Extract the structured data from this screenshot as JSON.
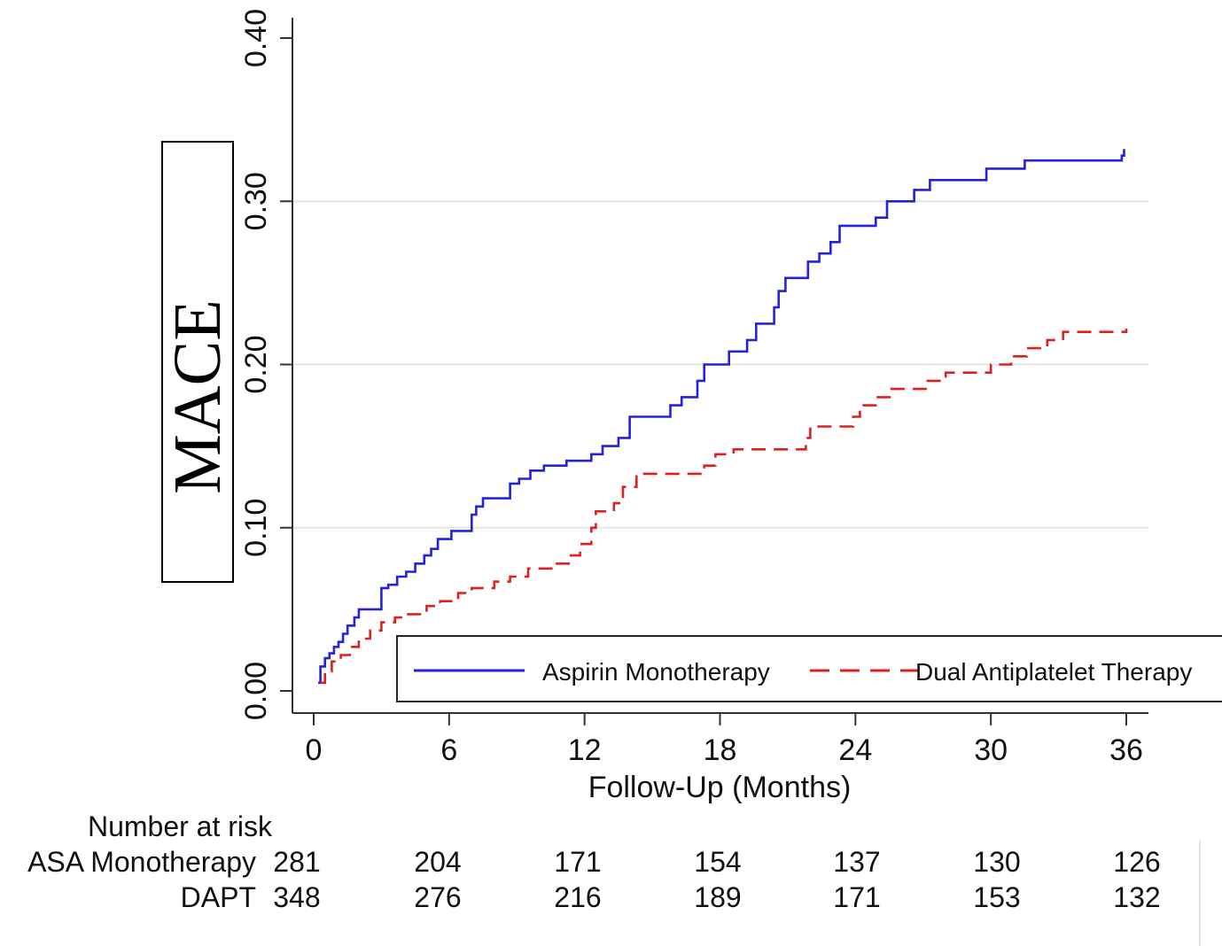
{
  "chart_data": {
    "type": "line",
    "title": "",
    "xlabel": "Follow-Up (Months)",
    "ylabel": "MACE",
    "xlim": [
      0,
      36
    ],
    "ylim": [
      0,
      0.4
    ],
    "x_ticks": [
      0,
      6,
      12,
      18,
      24,
      30,
      36
    ],
    "x_tick_labels": [
      "0",
      "6",
      "12",
      "18",
      "24",
      "30",
      "36"
    ],
    "y_ticks": [
      0,
      0.1,
      0.2,
      0.3,
      0.4
    ],
    "y_tick_labels": [
      "0.00",
      "0.10",
      "0.20",
      "0.30",
      "0.40"
    ],
    "grid": true,
    "legend_position": "bottom-right",
    "series": [
      {
        "name": "Aspirin Monotherapy",
        "color": "#2222dd",
        "style": "solid",
        "step": true,
        "x": [
          0.2,
          0.3,
          0.5,
          0.7,
          0.9,
          1.1,
          1.3,
          1.5,
          1.8,
          2.0,
          3.0,
          3.3,
          3.7,
          4.1,
          4.5,
          4.9,
          5.2,
          5.5,
          6.1,
          6.5,
          7.0,
          7.2,
          7.5,
          8.7,
          9.1,
          9.6,
          10.2,
          11.2,
          12.3,
          12.8,
          13.5,
          14.0,
          15.8,
          16.3,
          17.0,
          17.3,
          17.7,
          18.4,
          19.2,
          19.6,
          20.4,
          20.6,
          20.9,
          21.9,
          22.4,
          22.9,
          23.3,
          24.9,
          25.4,
          26.6,
          27.3,
          29.8,
          31.5,
          35.8,
          35.9
        ],
        "y": [
          0.005,
          0.015,
          0.02,
          0.023,
          0.027,
          0.03,
          0.035,
          0.04,
          0.045,
          0.05,
          0.063,
          0.065,
          0.07,
          0.073,
          0.078,
          0.083,
          0.087,
          0.093,
          0.098,
          0.098,
          0.108,
          0.113,
          0.118,
          0.127,
          0.13,
          0.135,
          0.138,
          0.141,
          0.145,
          0.15,
          0.155,
          0.168,
          0.175,
          0.18,
          0.19,
          0.2,
          0.2,
          0.208,
          0.215,
          0.225,
          0.235,
          0.245,
          0.253,
          0.263,
          0.268,
          0.275,
          0.285,
          0.29,
          0.3,
          0.307,
          0.313,
          0.32,
          0.325,
          0.328,
          0.332
        ]
      },
      {
        "name": "Dual Antiplatelet Therapy",
        "color": "#e02020",
        "style": "dashed",
        "step": true,
        "x": [
          0.3,
          0.5,
          0.8,
          1.2,
          1.6,
          2.0,
          2.5,
          3.0,
          3.6,
          4.1,
          5.0,
          5.6,
          6.4,
          7.0,
          8.0,
          8.7,
          9.5,
          10.6,
          11.3,
          11.8,
          12.3,
          12.5,
          13.3,
          13.7,
          14.3,
          17.3,
          17.8,
          18.6,
          21.8,
          22.0,
          23.9,
          24.2,
          24.9,
          25.6,
          27.2,
          28.0,
          30.0,
          30.9,
          31.6,
          32.5,
          33.2,
          36.0
        ],
        "y": [
          0.005,
          0.012,
          0.018,
          0.022,
          0.027,
          0.032,
          0.037,
          0.042,
          0.045,
          0.047,
          0.052,
          0.055,
          0.06,
          0.063,
          0.067,
          0.07,
          0.075,
          0.078,
          0.083,
          0.09,
          0.1,
          0.11,
          0.115,
          0.125,
          0.133,
          0.138,
          0.145,
          0.148,
          0.155,
          0.162,
          0.168,
          0.175,
          0.18,
          0.185,
          0.19,
          0.195,
          0.2,
          0.205,
          0.21,
          0.215,
          0.22,
          0.222
        ]
      }
    ],
    "risk_table": {
      "title": "Number at risk",
      "times": [
        0,
        6,
        12,
        18,
        24,
        30,
        36
      ],
      "rows": [
        {
          "label": "ASA Monotherapy",
          "values": [
            "281",
            "204",
            "171",
            "154",
            "137",
            "130",
            "126"
          ]
        },
        {
          "label": "DAPT",
          "values": [
            "348",
            "276",
            "216",
            "189",
            "171",
            "153",
            "132"
          ]
        }
      ]
    }
  }
}
